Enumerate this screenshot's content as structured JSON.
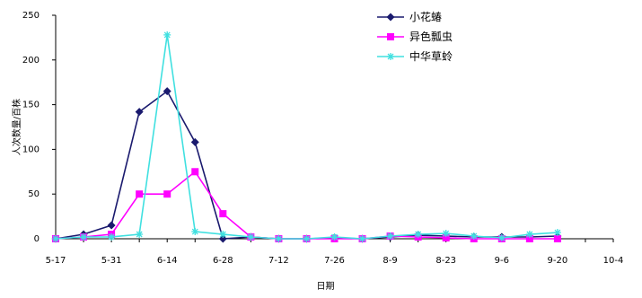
{
  "chart_data": {
    "type": "line",
    "title": "",
    "xlabel": "日期",
    "ylabel": "人次数量/百株",
    "ylim": [
      0,
      250
    ],
    "yticks": [
      "0",
      "50",
      "100",
      "150",
      "200",
      "250"
    ],
    "xlim": [
      0,
      18
    ],
    "xticks": [
      {
        "pos": 0,
        "label": "5-17"
      },
      {
        "pos": 2,
        "label": "5-31"
      },
      {
        "pos": 4,
        "label": "6-14"
      },
      {
        "pos": 6,
        "label": "6-28"
      },
      {
        "pos": 8,
        "label": "7-12"
      },
      {
        "pos": 10,
        "label": "7-26"
      },
      {
        "pos": 12,
        "label": "8-9"
      },
      {
        "pos": 14,
        "label": "8-23"
      },
      {
        "pos": 16,
        "label": "9-6"
      },
      {
        "pos": 18,
        "label": "9-20"
      },
      {
        "pos": 20,
        "label": "10-4"
      }
    ],
    "legend_position": "top-right",
    "grid": false,
    "series": [
      {
        "name": "小花蝽",
        "color": "#1a1a6e",
        "marker": "diamond",
        "x": [
          0,
          1,
          2,
          3,
          4,
          5,
          6,
          7,
          8,
          9,
          10,
          11,
          12,
          13,
          14,
          15,
          16,
          17,
          18
        ],
        "values": [
          0,
          5,
          15,
          142,
          165,
          108,
          0,
          2,
          0,
          0,
          1,
          0,
          2,
          4,
          3,
          2,
          2,
          2,
          3
        ]
      },
      {
        "name": "异色瓢虫",
        "color": "#ff00ff",
        "marker": "square",
        "x": [
          0,
          1,
          2,
          3,
          4,
          5,
          6,
          7,
          8,
          9,
          10,
          11,
          12,
          13,
          14,
          15,
          16,
          17,
          18
        ],
        "values": [
          0,
          2,
          5,
          50,
          50,
          75,
          28,
          2,
          0,
          0,
          0,
          0,
          3,
          2,
          1,
          0,
          0,
          0,
          0
        ]
      },
      {
        "name": "中华草蛉",
        "color": "#40e0e0",
        "marker": "star",
        "x": [
          0,
          1,
          2,
          3,
          4,
          5,
          6,
          7,
          8,
          9,
          10,
          11,
          12,
          13,
          14,
          15,
          16,
          17,
          18
        ],
        "values": [
          0,
          2,
          2,
          5,
          228,
          8,
          5,
          2,
          0,
          0,
          2,
          0,
          3,
          5,
          6,
          3,
          1,
          5,
          7
        ]
      }
    ]
  }
}
